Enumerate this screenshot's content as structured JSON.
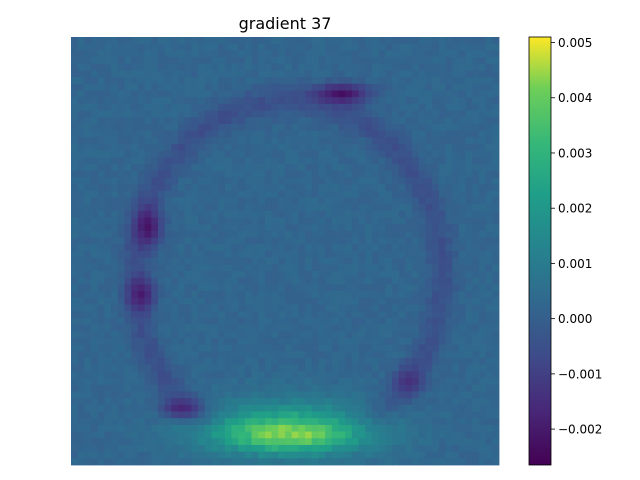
{
  "chart_data": {
    "type": "heatmap",
    "title": "gradient 37",
    "grid_size": [
      64,
      64
    ],
    "colormap": "viridis",
    "colorbar": {
      "vmin": -0.00265,
      "vmax": 0.0051,
      "ticks": [
        -0.002,
        -0.001,
        0.0,
        0.001,
        0.002,
        0.003,
        0.004,
        0.005
      ],
      "tick_labels": [
        "−0.002",
        "−0.001",
        "0.000",
        "0.001",
        "0.002",
        "0.003",
        "0.004",
        "0.005"
      ]
    },
    "background_value": 0.0002,
    "features": {
      "ring": {
        "center": [
          32,
          35
        ],
        "radii": [
          23,
          26
        ],
        "value": -0.0006
      },
      "bright_band": {
        "center": [
          32,
          59
        ],
        "radii": [
          10,
          2.5
        ],
        "value": 0.0048
      },
      "band_halo": {
        "center": [
          32,
          58
        ],
        "radii": [
          13,
          4.5
        ],
        "value": 0.0026
      },
      "dark_top": {
        "center": [
          40,
          8
        ],
        "radii": [
          4,
          1.5
        ],
        "value": -0.0024
      },
      "dark_left_upper": {
        "center": [
          11,
          28
        ],
        "radii": [
          2,
          3
        ],
        "value": -0.0023
      },
      "dark_left_lower": {
        "center": [
          10,
          38
        ],
        "radii": [
          2,
          2.5
        ],
        "value": -0.0021
      },
      "dark_bottom_left": {
        "center": [
          16,
          55
        ],
        "radii": [
          3,
          1.5
        ],
        "value": -0.0018
      },
      "dark_right_lower": {
        "center": [
          50,
          51
        ],
        "radii": [
          2,
          2
        ],
        "value": -0.0015
      }
    }
  }
}
